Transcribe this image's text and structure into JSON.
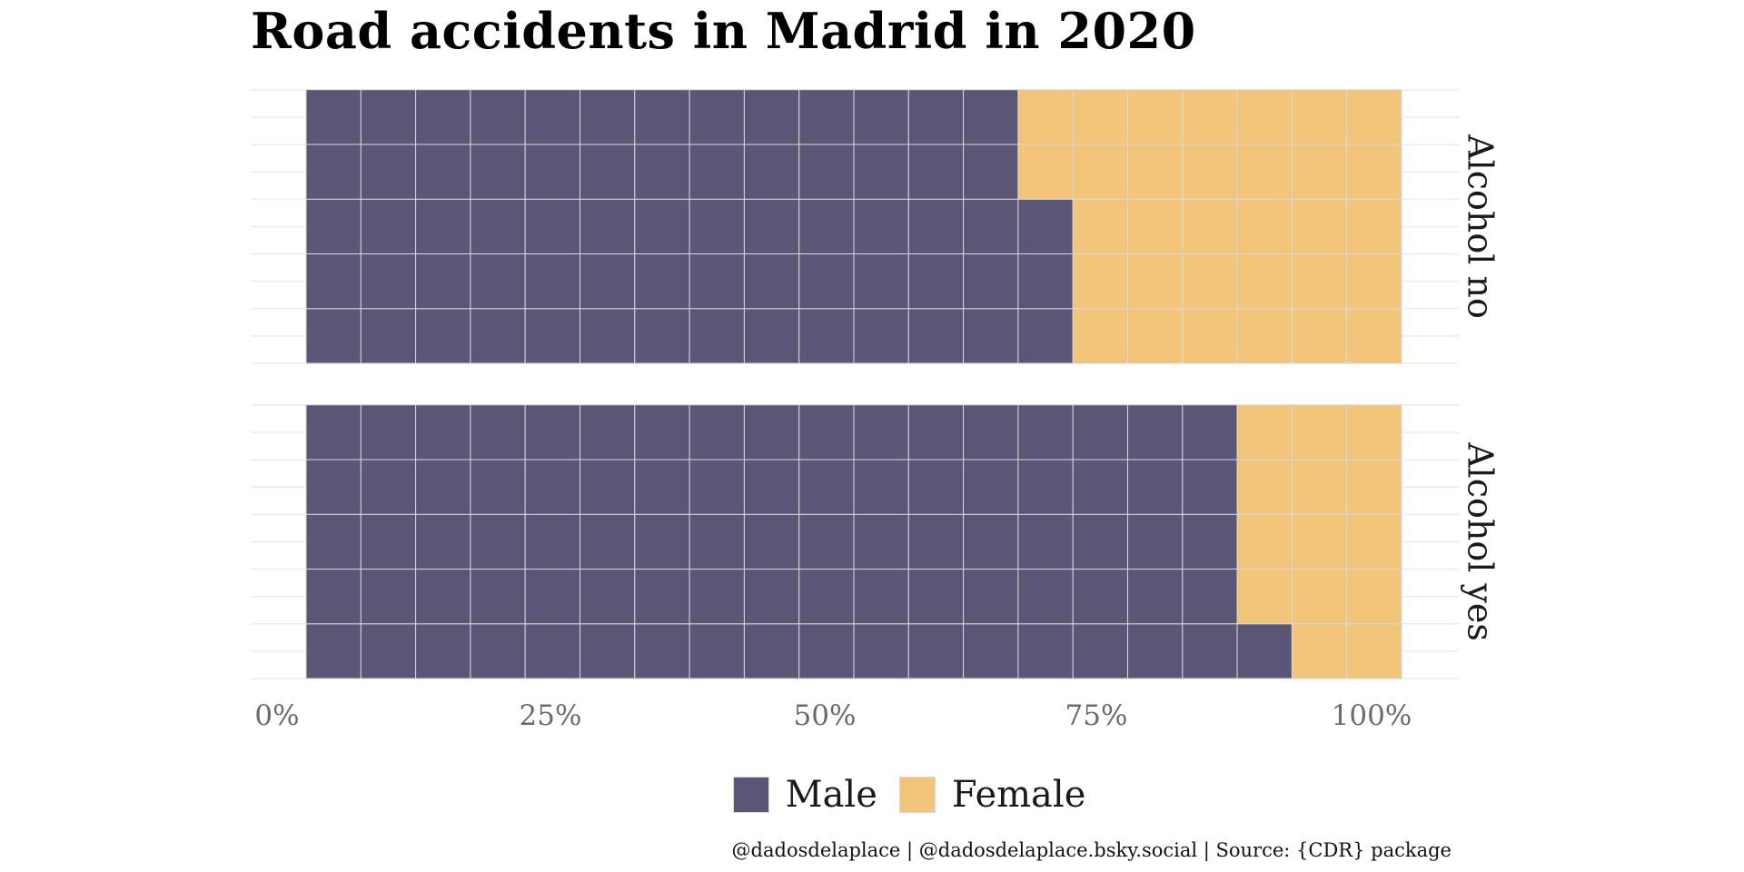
{
  "chart_data": {
    "type": "waffle",
    "title": "Road accidents in Madrid in 2020",
    "x_tick_labels": [
      "0%",
      "25%",
      "50%",
      "75%",
      "100%"
    ],
    "xlim": [
      0,
      100
    ],
    "grid": true,
    "legend_position": "bottom",
    "grid_columns": 20,
    "grid_rows": 5,
    "fill_order": "column-major, bottom-to-top, left-to-right",
    "series": [
      {
        "name": "Male",
        "color": "#5b5675"
      },
      {
        "name": "Female",
        "color": "#f3c57a"
      }
    ],
    "facets": [
      {
        "label": "Alcohol no",
        "values": {
          "Male": 68,
          "Female": 32
        }
      },
      {
        "label": "Alcohol yes",
        "values": {
          "Male": 86,
          "Female": 14
        }
      }
    ],
    "caption": "@dadosdelaplace | @dadosdelaplace.bsky.social | Source: {CDR} package"
  }
}
